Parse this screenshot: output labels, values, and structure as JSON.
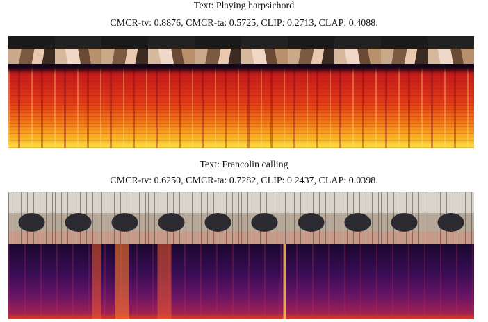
{
  "panels": [
    {
      "text": "Text: Playing harpsichord",
      "metrics": "CMCR-tv: 0.8876, CMCR-ta: 0.5725, CLIP: 0.2713, CLAP: 0.4088."
    },
    {
      "text": "Text: Francolin calling",
      "metrics": "CMCR-tv: 0.6250, CMCR-ta: 0.7282, CLIP: 0.2437, CLAP: 0.0398."
    }
  ]
}
